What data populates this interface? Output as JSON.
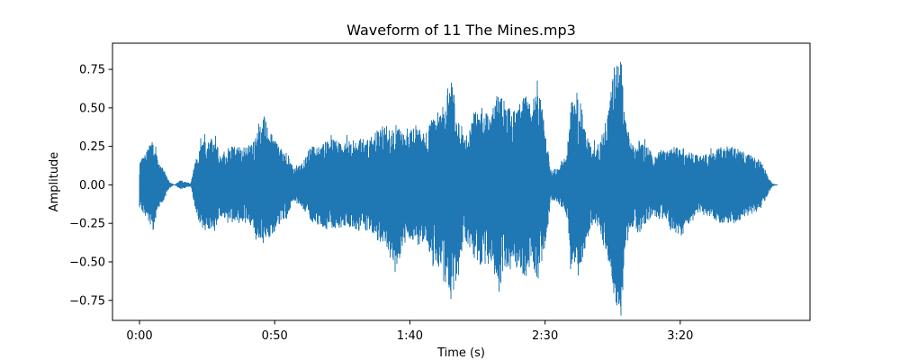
{
  "chart_data": {
    "type": "line",
    "title": "Waveform of 11 The Mines.mp3",
    "xlabel": "Time (s)",
    "ylabel": "Amplitude",
    "xlim": [
      -10,
      248
    ],
    "ylim": [
      -0.88,
      0.92
    ],
    "x_ticks": [
      {
        "value": 0,
        "label": "0:00"
      },
      {
        "value": 50,
        "label": "0:50"
      },
      {
        "value": 100,
        "label": "1:40"
      },
      {
        "value": 150,
        "label": "2:30"
      },
      {
        "value": 200,
        "label": "3:20"
      }
    ],
    "y_ticks": [
      {
        "value": 0.75,
        "label": "0.75"
      },
      {
        "value": 0.5,
        "label": "0.50"
      },
      {
        "value": 0.25,
        "label": "0.25"
      },
      {
        "value": 0.0,
        "label": "0.00"
      },
      {
        "value": -0.25,
        "label": "−0.25"
      },
      {
        "value": -0.5,
        "label": "−0.50"
      },
      {
        "value": -0.75,
        "label": "−0.75"
      }
    ],
    "grid": false,
    "series": [
      {
        "color": "#1f77b4",
        "envelope": {
          "time": [
            0,
            2,
            5,
            7,
            9,
            11,
            13,
            15,
            17,
            19,
            21,
            22,
            24,
            26,
            28,
            30,
            33,
            36,
            40,
            42,
            44,
            46,
            48,
            50,
            52,
            55,
            57,
            60,
            62,
            63,
            65,
            70,
            75,
            80,
            85,
            90,
            92,
            95,
            98,
            100,
            103,
            106,
            108,
            110,
            112,
            115,
            118,
            120,
            122,
            124,
            127,
            130,
            133,
            135,
            137,
            140,
            143,
            145,
            147,
            150,
            152,
            155,
            158,
            160,
            163,
            165,
            168,
            170,
            173,
            175,
            178,
            180,
            183,
            185,
            190,
            195,
            200,
            205,
            210,
            215,
            220,
            225,
            228,
            230,
            232,
            234,
            236
          ],
          "upper": [
            0.15,
            0.2,
            0.3,
            0.15,
            0.1,
            0.02,
            0.0,
            0.03,
            0.02,
            0.01,
            0.2,
            0.25,
            0.3,
            0.3,
            0.3,
            0.2,
            0.25,
            0.25,
            0.25,
            0.3,
            0.4,
            0.45,
            0.35,
            0.3,
            0.25,
            0.2,
            0.1,
            0.15,
            0.2,
            0.25,
            0.25,
            0.3,
            0.28,
            0.3,
            0.3,
            0.4,
            0.35,
            0.4,
            0.32,
            0.35,
            0.4,
            0.35,
            0.45,
            0.4,
            0.5,
            0.7,
            0.45,
            0.3,
            0.35,
            0.5,
            0.5,
            0.45,
            0.65,
            0.5,
            0.5,
            0.5,
            0.6,
            0.5,
            0.7,
            0.4,
            0.1,
            0.12,
            0.2,
            0.6,
            0.55,
            0.35,
            0.25,
            0.3,
            0.45,
            0.7,
            0.85,
            0.4,
            0.25,
            0.3,
            0.2,
            0.25,
            0.25,
            0.2,
            0.2,
            0.25,
            0.25,
            0.2,
            0.18,
            0.15,
            0.08,
            0.01,
            0.0
          ],
          "lower": [
            -0.15,
            -0.2,
            -0.3,
            -0.15,
            -0.1,
            -0.02,
            0.0,
            -0.03,
            -0.02,
            -0.01,
            -0.2,
            -0.25,
            -0.3,
            -0.3,
            -0.3,
            -0.2,
            -0.25,
            -0.25,
            -0.25,
            -0.3,
            -0.35,
            -0.4,
            -0.35,
            -0.3,
            -0.25,
            -0.2,
            -0.1,
            -0.15,
            -0.2,
            -0.25,
            -0.25,
            -0.3,
            -0.28,
            -0.3,
            -0.3,
            -0.4,
            -0.45,
            -0.55,
            -0.35,
            -0.35,
            -0.4,
            -0.35,
            -0.55,
            -0.5,
            -0.6,
            -0.77,
            -0.55,
            -0.35,
            -0.4,
            -0.5,
            -0.55,
            -0.5,
            -0.7,
            -0.55,
            -0.55,
            -0.55,
            -0.6,
            -0.5,
            -0.65,
            -0.4,
            -0.1,
            -0.12,
            -0.2,
            -0.6,
            -0.55,
            -0.35,
            -0.25,
            -0.3,
            -0.45,
            -0.7,
            -0.87,
            -0.4,
            -0.25,
            -0.3,
            -0.2,
            -0.25,
            -0.35,
            -0.2,
            -0.2,
            -0.25,
            -0.25,
            -0.2,
            -0.18,
            -0.15,
            -0.08,
            -0.01,
            0.0
          ]
        }
      }
    ]
  }
}
